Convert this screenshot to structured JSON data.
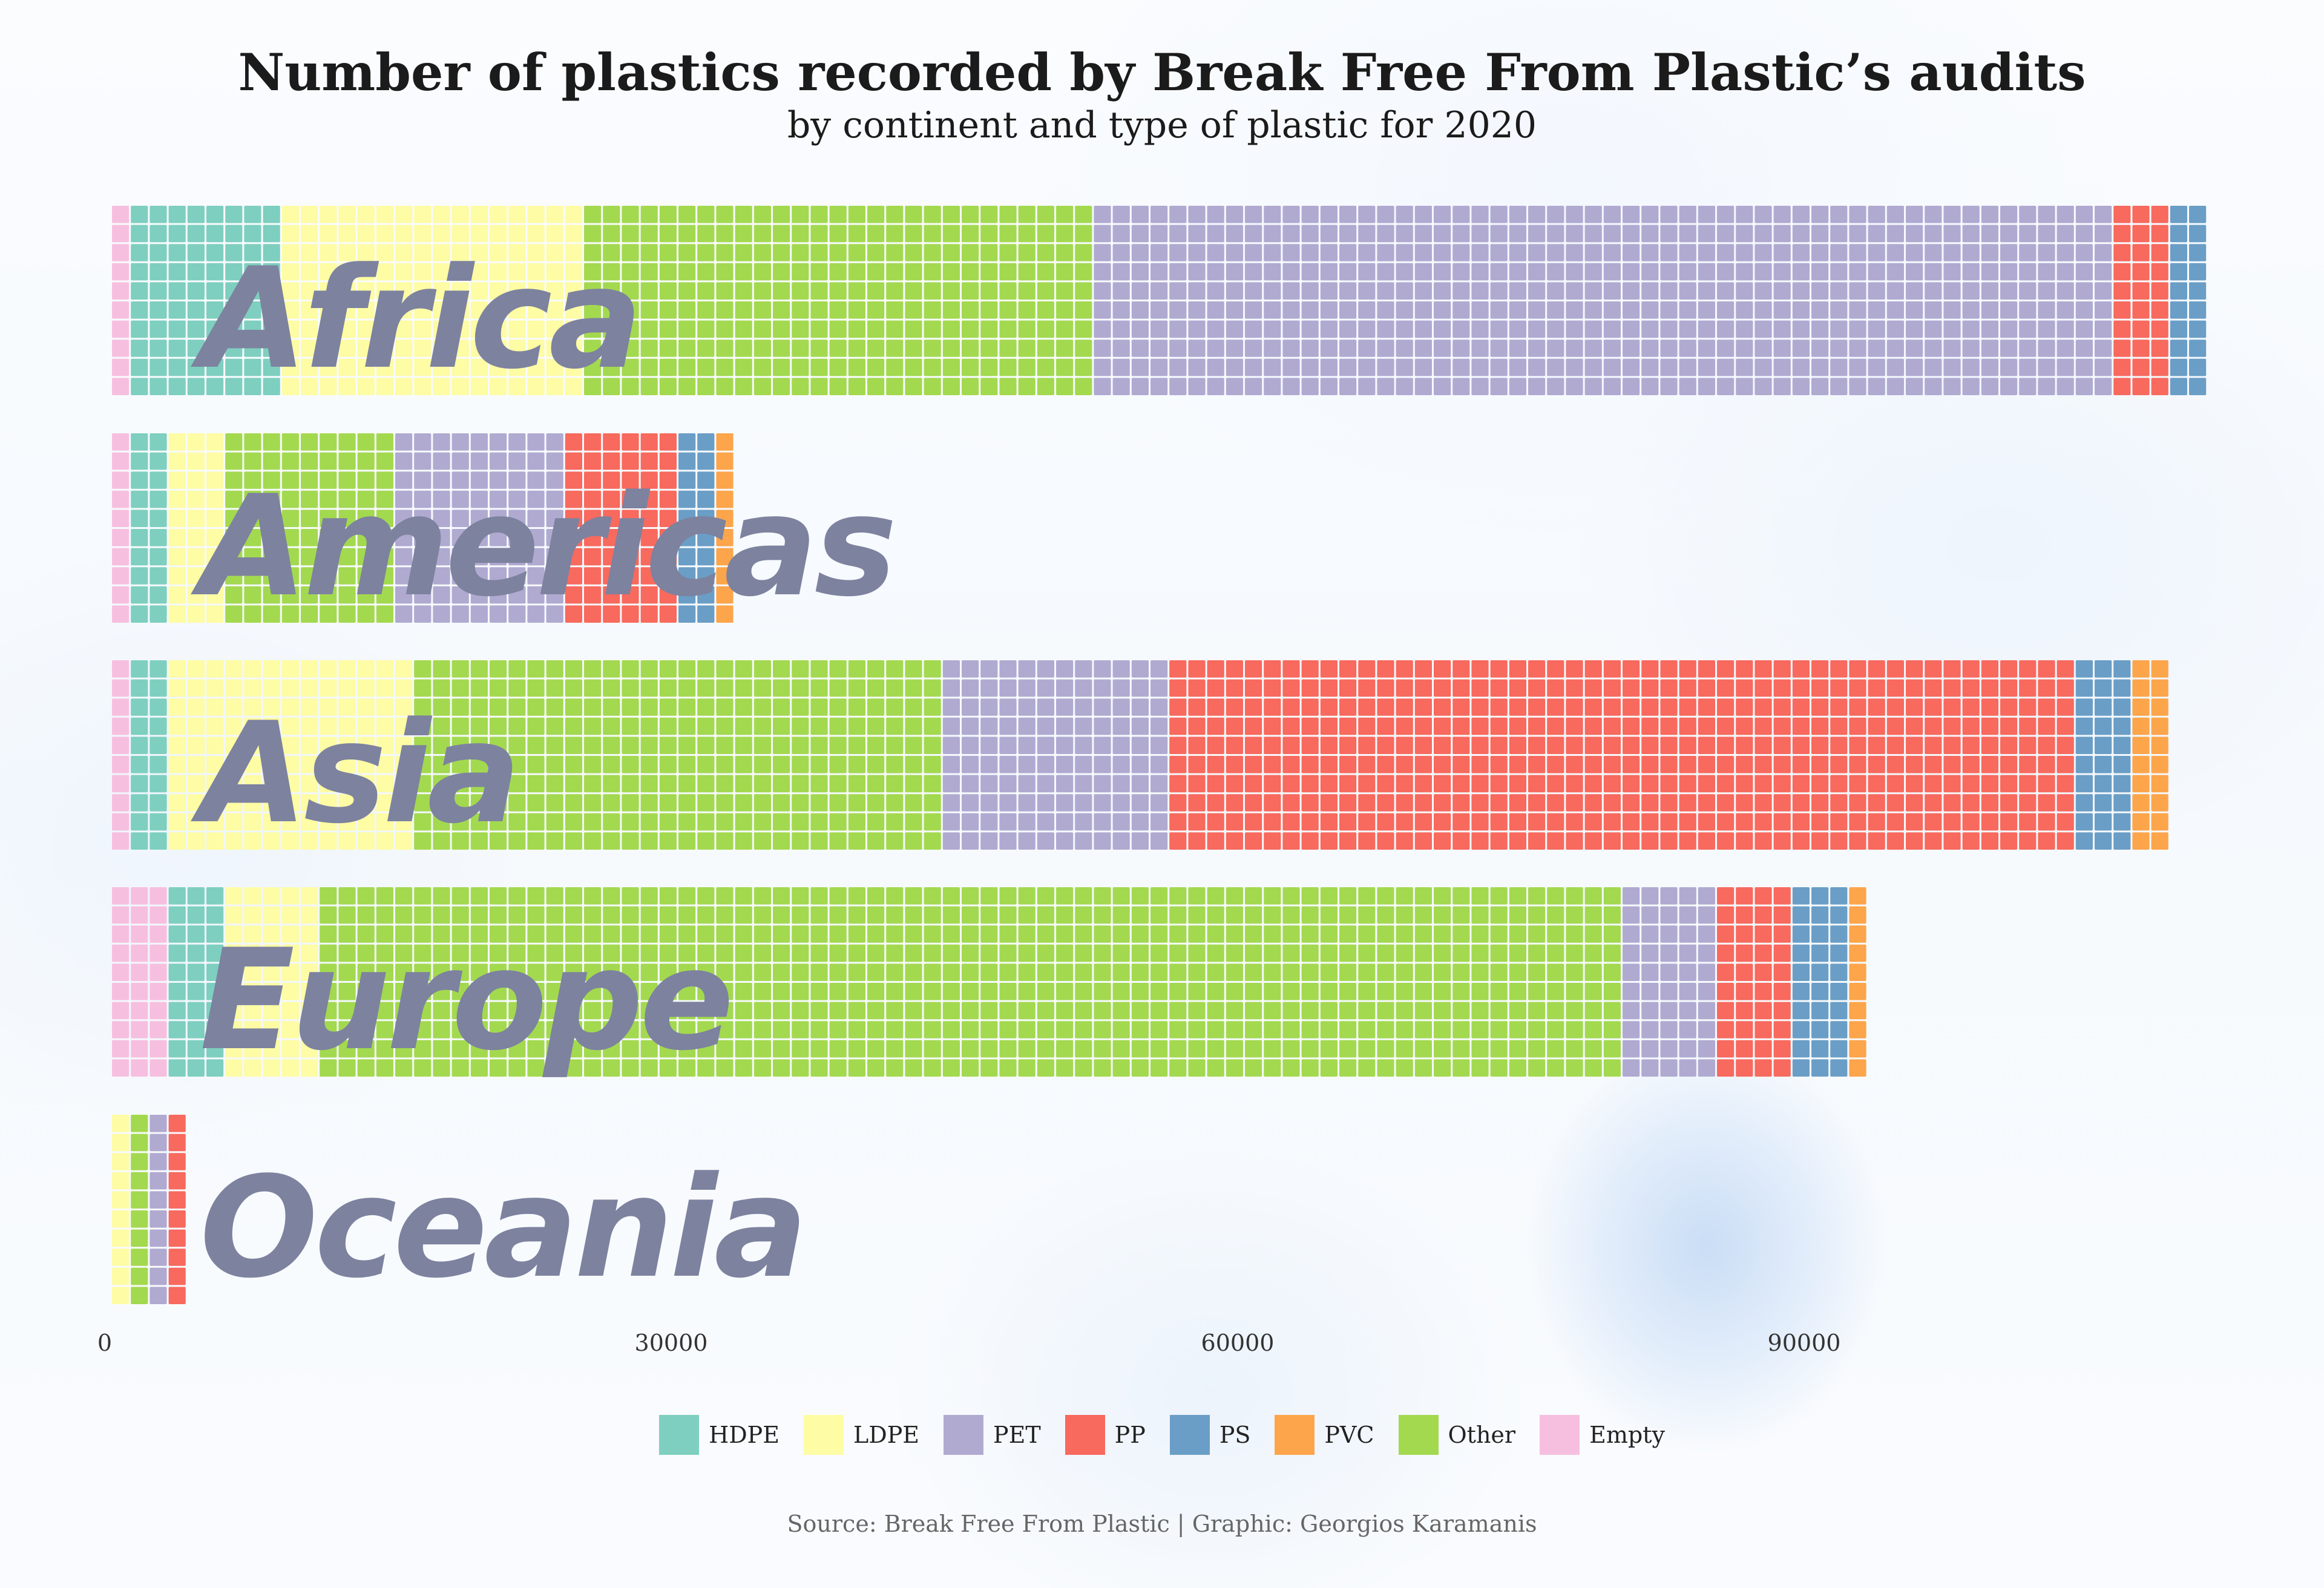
{
  "chart_data": {
    "type": "bar",
    "style": "stacked waffle bars (horizontal)",
    "title": "Number of plastics recorded by Break Free From Plastic’s audits",
    "subtitle": "by continent and type of plastic for 2020",
    "source": "Source: Break Free From Plastic | Graphic: Georgios Karamanis",
    "categories": [
      "Africa",
      "Americas",
      "Asia",
      "Europe",
      "Oceania"
    ],
    "x_ticks": [
      0,
      30000,
      60000,
      90000
    ],
    "x_tick_labels": [
      "0",
      "30000",
      "60000",
      "90000"
    ],
    "xlim": [
      0,
      112000
    ],
    "grid": false,
    "legend_position": "bottom",
    "series": [
      {
        "name": "Empty",
        "color": "#f7bfdf",
        "values": [
          1000,
          1000,
          1000,
          3000,
          0
        ]
      },
      {
        "name": "HDPE",
        "color": "#7ecfbf",
        "values": [
          8000,
          2000,
          2000,
          3000,
          0
        ]
      },
      {
        "name": "LDPE",
        "color": "#fefca4",
        "values": [
          16000,
          3000,
          13000,
          5000,
          1000
        ]
      },
      {
        "name": "Other",
        "color": "#a3d94f",
        "values": [
          27000,
          9000,
          28000,
          69000,
          1000
        ]
      },
      {
        "name": "PET",
        "color": "#b0aad1",
        "values": [
          54000,
          9000,
          12000,
          5000,
          1000
        ]
      },
      {
        "name": "PP",
        "color": "#f8695e",
        "values": [
          3000,
          6000,
          48000,
          4000,
          1000
        ]
      },
      {
        "name": "PS",
        "color": "#6a9ec6",
        "values": [
          2000,
          2000,
          3000,
          3000,
          0
        ]
      },
      {
        "name": "PVC",
        "color": "#fca54b",
        "values": [
          0,
          1000,
          2000,
          1000,
          0
        ]
      }
    ]
  },
  "legend": [
    {
      "name": "HDPE",
      "color": "#7ecfbf"
    },
    {
      "name": "LDPE",
      "color": "#fefca4"
    },
    {
      "name": "PET",
      "color": "#b0aad1"
    },
    {
      "name": "PP",
      "color": "#f8695e"
    },
    {
      "name": "PS",
      "color": "#6a9ec6"
    },
    {
      "name": "PVC",
      "color": "#fca54b"
    },
    {
      "name": "Other",
      "color": "#a3d94f"
    },
    {
      "name": "Empty",
      "color": "#f7bfdf"
    }
  ]
}
